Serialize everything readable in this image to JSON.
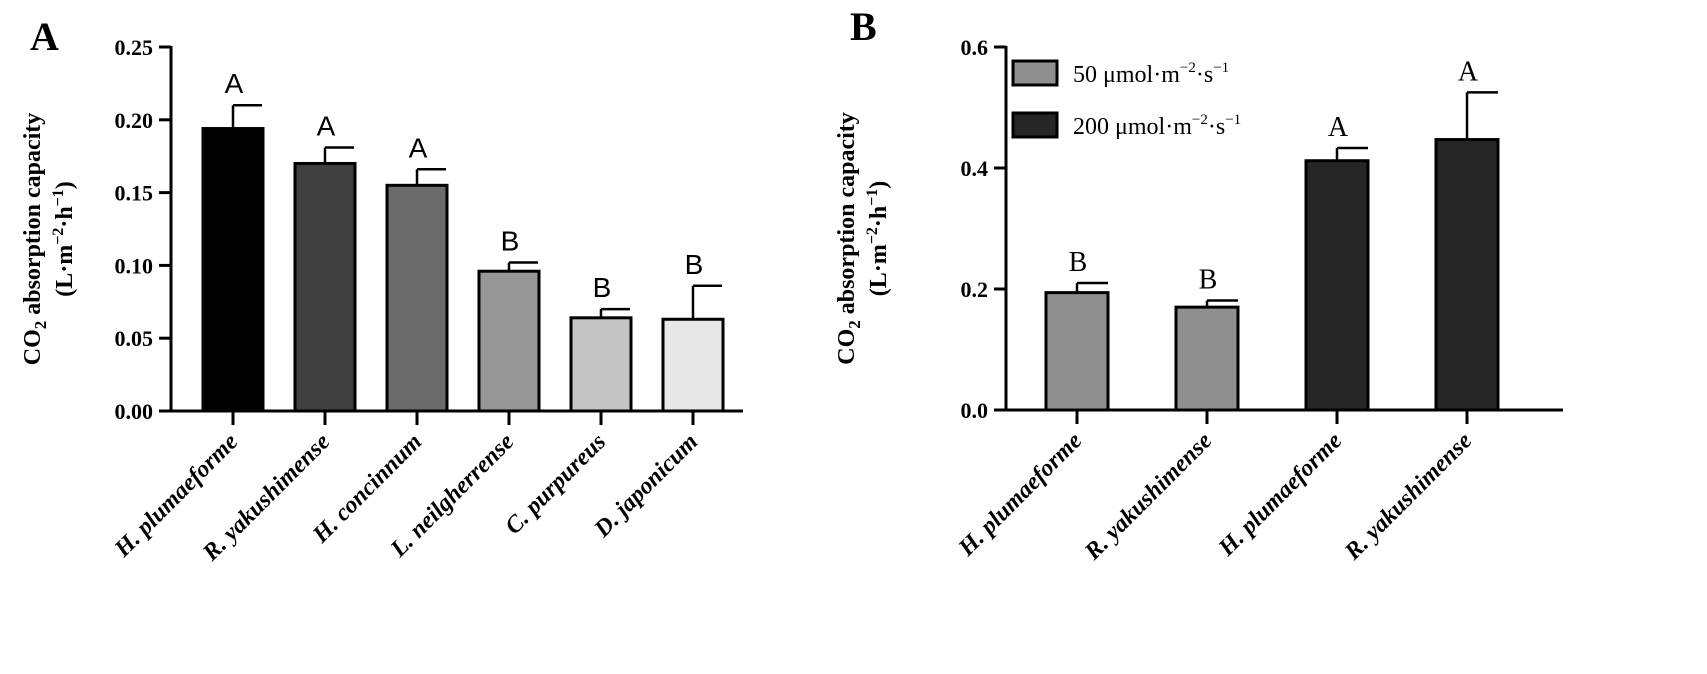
{
  "chart_data": [
    {
      "panel": "A",
      "type": "bar",
      "title": "",
      "xlabel": "",
      "ylabel": "CO2 absorption capacity",
      "ylabel_unit": "(L·m−2·h−1)",
      "ylim": [
        0,
        0.25
      ],
      "yticks": [
        "0.00",
        "0.05",
        "0.10",
        "0.15",
        "0.20",
        "0.25"
      ],
      "categories": [
        "H. plumaeforme",
        "R. yakushimense",
        "H. concinnum",
        "L. neilgherrense",
        "C. purpureus",
        "D. japonicum"
      ],
      "values": [
        0.194,
        0.17,
        0.155,
        0.096,
        0.064,
        0.063
      ],
      "errors": [
        0.016,
        0.011,
        0.011,
        0.006,
        0.006,
        0.023
      ],
      "significance": [
        "A",
        "A",
        "A",
        "B",
        "B",
        "B"
      ],
      "colors": [
        "#000000",
        "#404040",
        "#6b6b6b",
        "#969696",
        "#c4c4c4",
        "#e8e8e8"
      ],
      "grid": false
    },
    {
      "panel": "B",
      "type": "bar",
      "title": "",
      "xlabel": "",
      "ylabel": "CO2 absorption capacity",
      "ylabel_unit": "(L·m−2·h−1)",
      "ylim": [
        0,
        0.6
      ],
      "yticks": [
        "0.0",
        "0.2",
        "0.4",
        "0.6"
      ],
      "categories": [
        "H. plumaeforme",
        "R. yakushimense",
        "H. plumaeforme",
        "R. yakushimense"
      ],
      "values": [
        0.194,
        0.17,
        0.412,
        0.447
      ],
      "errors": [
        0.016,
        0.011,
        0.021,
        0.078
      ],
      "significance": [
        "B",
        "B",
        "A",
        "A"
      ],
      "series_index": [
        0,
        0,
        1,
        1
      ],
      "legend": [
        {
          "name": "50 μmol·m−2·s−1",
          "color": "#8f8f8f"
        },
        {
          "name": "200 μmol·m−2·s−1",
          "color": "#262626"
        }
      ],
      "legend_position": "top-left",
      "grid": false
    }
  ]
}
